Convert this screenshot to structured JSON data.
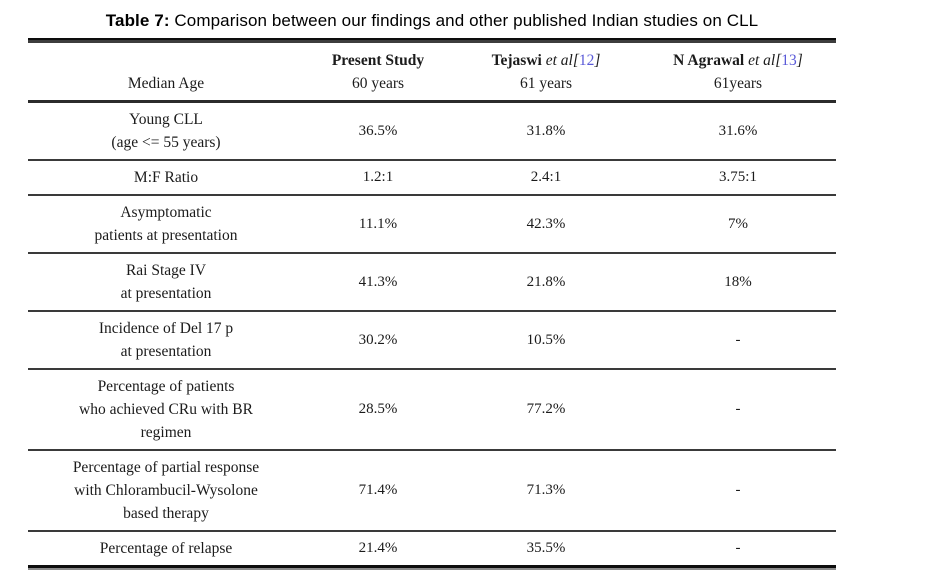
{
  "title": {
    "bold": "Table 7:",
    "rest": " Comparison between our findings and other published Indian studies on CLL"
  },
  "table": {
    "header": {
      "row_label": "Median Age",
      "cols": [
        {
          "name": "Present Study",
          "etal": "",
          "cite_open": "",
          "cite_num": "",
          "cite_close": "",
          "value": "60 years"
        },
        {
          "name": "Tejaswi",
          "etal": " et al",
          "cite_open": "[",
          "cite_num": "12",
          "cite_close": "]",
          "value": "61 years"
        },
        {
          "name": "N Agrawal",
          "etal": " et al",
          "cite_open": "[",
          "cite_num": "13",
          "cite_close": "]",
          "value": "61years"
        }
      ]
    },
    "rows": [
      {
        "label_lines": [
          "Young CLL",
          "(age <= 55 years)"
        ],
        "values": [
          "36.5%",
          "31.8%",
          "31.6%"
        ]
      },
      {
        "label_lines": [
          "M:F Ratio"
        ],
        "values": [
          "1.2:1",
          "2.4:1",
          "3.75:1"
        ]
      },
      {
        "label_lines": [
          "Asymptomatic",
          "patients at presentation"
        ],
        "values": [
          "11.1%",
          "42.3%",
          "7%"
        ]
      },
      {
        "label_lines": [
          "Rai Stage IV",
          "at presentation"
        ],
        "values": [
          "41.3%",
          "21.8%",
          "18%"
        ]
      },
      {
        "label_lines": [
          "Incidence of Del 17 p",
          "at presentation"
        ],
        "values": [
          "30.2%",
          "10.5%",
          "-"
        ]
      },
      {
        "label_lines": [
          "Percentage of patients",
          "who achieved CRu with BR",
          "regimen"
        ],
        "values": [
          "28.5%",
          "77.2%",
          "-"
        ]
      },
      {
        "label_lines": [
          "Percentage of partial response",
          "with Chlorambucil-Wysolone",
          "based therapy"
        ],
        "values": [
          "71.4%",
          "71.3%",
          "-"
        ]
      },
      {
        "label_lines": [
          "Percentage of relapse"
        ],
        "values": [
          "21.4%",
          "35.5%",
          "-"
        ]
      }
    ]
  },
  "colors": {
    "citation_link": "#5a5ad8",
    "text": "#1b1b1b",
    "rule": "#3a3a3a"
  }
}
